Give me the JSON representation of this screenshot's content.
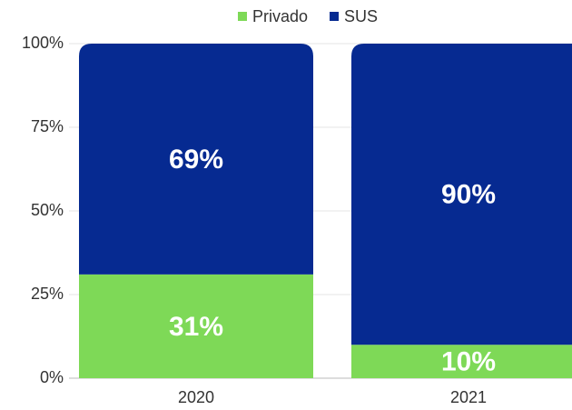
{
  "chart_data": {
    "type": "stacked_bar",
    "categories": [
      "2020",
      "2021"
    ],
    "series": [
      {
        "name": "Privado",
        "color": "#7ed957",
        "values": [
          31,
          10
        ],
        "value_labels": [
          "31%",
          "10%"
        ]
      },
      {
        "name": "SUS",
        "color": "#062a91",
        "values": [
          69,
          90
        ],
        "value_labels": [
          "69%",
          "90%"
        ]
      }
    ],
    "ylim": [
      0,
      100
    ],
    "yticks": [
      {
        "value": 0,
        "label": "0%"
      },
      {
        "value": 25,
        "label": "25%"
      },
      {
        "value": 50,
        "label": "50%"
      },
      {
        "value": 75,
        "label": "75%"
      },
      {
        "value": 100,
        "label": "100%"
      }
    ],
    "grid": true,
    "legend": "top"
  }
}
